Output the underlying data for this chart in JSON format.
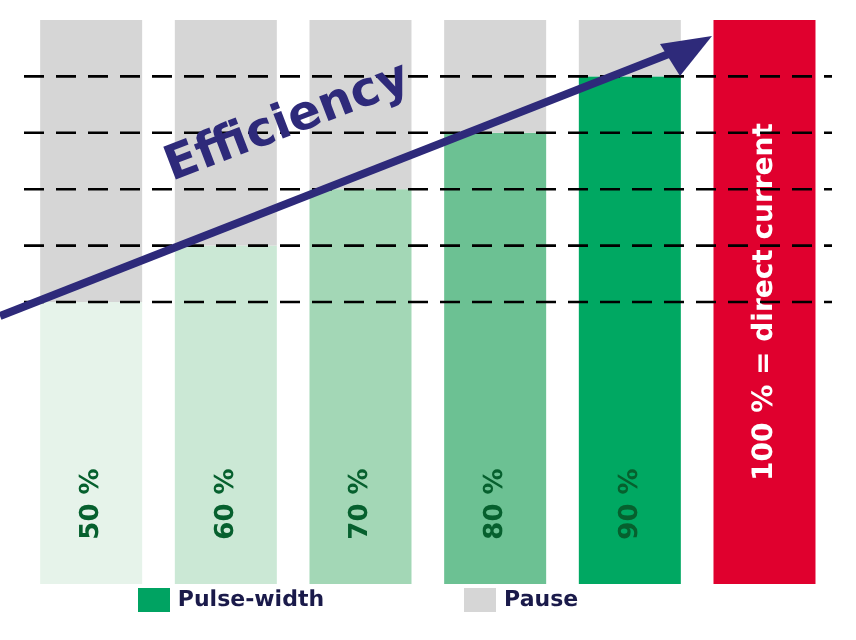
{
  "chart_data": {
    "type": "bar",
    "stacked": true,
    "categories": [
      null,
      null,
      null,
      null,
      null,
      null
    ],
    "ylim": [
      0,
      100
    ],
    "tick_labels": false,
    "series": [
      {
        "name": "Pulse-width",
        "color": "#00a362",
        "colors": [
          "#e6f3ea",
          "#cbe8d5",
          "#a3d7b6",
          "#6cc193",
          "#00a862",
          null
        ],
        "values": [
          50,
          60,
          70,
          80,
          90,
          null
        ],
        "value_labels": [
          "50 %",
          "60 %",
          "70 %",
          "80 %",
          "90 %",
          null
        ]
      },
      {
        "name": "Pause",
        "color": "#d6d6d6",
        "values": [
          50,
          40,
          30,
          20,
          10,
          null
        ]
      },
      {
        "color": "#e0002e",
        "values": [
          null,
          null,
          null,
          null,
          null,
          100
        ],
        "value_labels": [
          null,
          null,
          null,
          null,
          null,
          "100 % = direct current"
        ]
      }
    ],
    "ref_lines": [
      {
        "axis": "y",
        "value": 50,
        "line_style": "dashed",
        "color": "#000000"
      },
      {
        "axis": "y",
        "value": 60,
        "line_style": "dashed",
        "color": "#000000"
      },
      {
        "axis": "y",
        "value": 70,
        "line_style": "dashed",
        "color": "#000000"
      },
      {
        "axis": "y",
        "value": 80,
        "line_style": "dashed",
        "color": "#000000"
      },
      {
        "axis": "y",
        "value": 90,
        "line_style": "dashed",
        "color": "#000000"
      }
    ],
    "annotations": [
      "Efficiency"
    ],
    "legend": "bottom",
    "grid": false
  }
}
